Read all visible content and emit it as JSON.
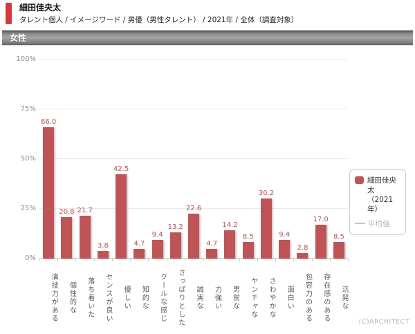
{
  "header": {
    "title": "細田佳央太",
    "breadcrumb": "タレント個人 / イメージワード / 男優（男性タレント） / 2021年 / 全体（調査対象）"
  },
  "section_banner": {
    "label": "女性"
  },
  "chart_data": {
    "type": "bar",
    "categories": [
      "演技力がある",
      "個性的な",
      "落ち着いた",
      "センスが良い",
      "優しい",
      "知的な",
      "クールな感じ",
      "さっぱりとした",
      "誠実な",
      "力強い",
      "男前な",
      "ヤンチャな",
      "さわやかな",
      "面白い",
      "包容力のある",
      "存在感のある",
      "活発な"
    ],
    "series": [
      {
        "name": "細田佳央太（2021年）",
        "values": [
          66.0,
          20.8,
          21.7,
          3.8,
          42.5,
          4.7,
          9.4,
          13.2,
          22.6,
          4.7,
          14.2,
          8.5,
          30.2,
          9.4,
          2.8,
          17.0,
          8.5
        ]
      }
    ],
    "value_decimals": 1,
    "xlabel": "",
    "ylabel": "",
    "ylim": [
      0,
      100
    ],
    "ytick_values": [
      0,
      25,
      50,
      75,
      100
    ],
    "ytick_labels": [
      "0%",
      "25%",
      "50%",
      "75%",
      "100%"
    ],
    "grid": true,
    "legend_position": "right",
    "bar_color": "#bf5457"
  },
  "legend": {
    "items": [
      {
        "label": "細田佳央太\n（2021年）",
        "swatch": "box",
        "color": "#bf5457",
        "text_color": "#333333"
      },
      {
        "label": "平均値",
        "swatch": "line",
        "color": "#c6c6c6",
        "text_color": "#b4b4b4"
      }
    ]
  },
  "footer": {
    "copyright": "(C)ARCHITECT"
  },
  "colors": {
    "accent_red": "#d23b3b",
    "bar_red": "#bf5457",
    "banner_text": "#ffffff"
  }
}
